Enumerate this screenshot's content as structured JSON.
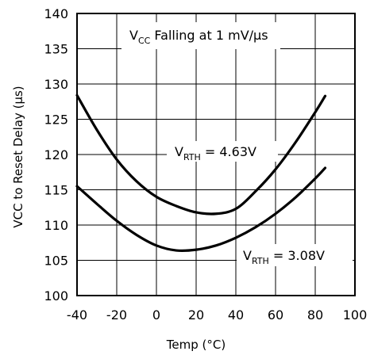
{
  "chart_data": {
    "type": "line",
    "title": "",
    "xlabel": "Temp (°C)",
    "ylabel": "VCC to Reset Delay (µs)",
    "xlim": [
      -40,
      100
    ],
    "ylim": [
      100,
      140
    ],
    "x_ticks": [
      "-40",
      "-20",
      "0",
      "20",
      "40",
      "60",
      "80",
      "100"
    ],
    "y_ticks": [
      "100",
      "105",
      "110",
      "115",
      "120",
      "125",
      "130",
      "135",
      "140"
    ],
    "grid": true,
    "annotations": {
      "box": {
        "prefix": "V",
        "sub": "CC",
        "suffix": " Falling at 1 mV/µs"
      },
      "upper_label": {
        "prefix": "V",
        "sub": "RTH",
        "suffix": " = 4.63V"
      },
      "lower_label": {
        "prefix": "V",
        "sub": "RTH",
        "suffix": " = 3.08V"
      }
    },
    "series": [
      {
        "name": "VRTH = 4.63V",
        "x": [
          -40,
          -30,
          -20,
          -10,
          0,
          10,
          20,
          30,
          40,
          50,
          60,
          70,
          80,
          85
        ],
        "y": [
          128.4,
          123.5,
          119.3,
          116.2,
          114.0,
          112.7,
          111.8,
          111.6,
          112.3,
          114.8,
          117.9,
          121.7,
          126.0,
          128.3
        ]
      },
      {
        "name": "VRTH = 3.08V",
        "x": [
          -40,
          -30,
          -20,
          -10,
          0,
          10,
          20,
          30,
          40,
          50,
          60,
          70,
          80,
          85
        ],
        "y": [
          115.5,
          113.0,
          110.6,
          108.6,
          107.1,
          106.4,
          106.5,
          107.1,
          108.2,
          109.7,
          111.6,
          113.9,
          116.6,
          118.1
        ]
      }
    ]
  }
}
